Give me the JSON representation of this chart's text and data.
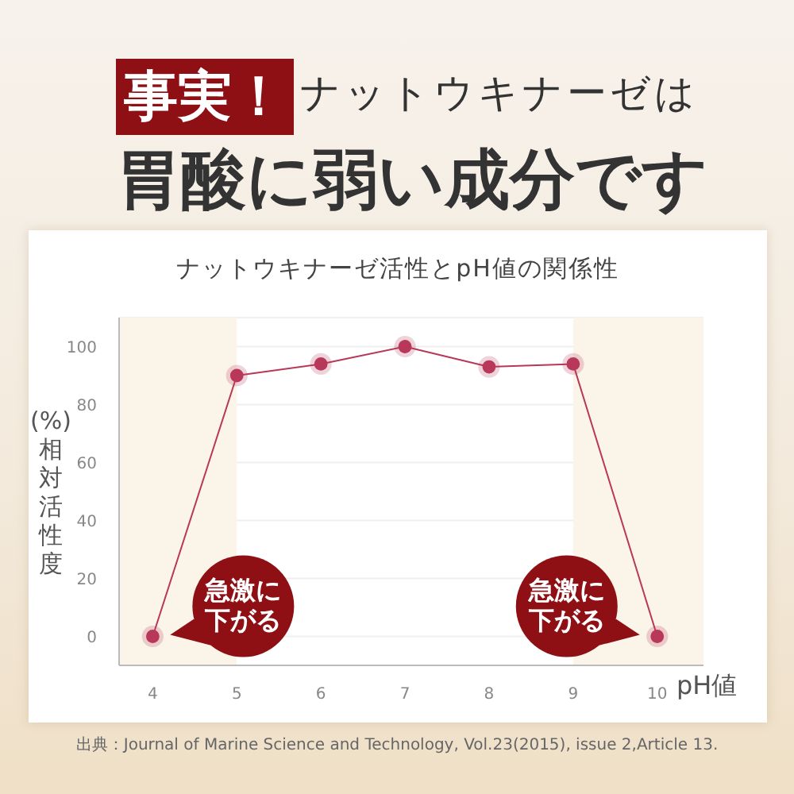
{
  "chart_data": {
    "type": "line",
    "title": "事実！ナットウキナーゼは胃酸に弱い成分です",
    "subtitle": "ナットウキナーゼ活性とpH値の関係性",
    "xlabel": "pH値",
    "ylabel": "(%)相対活性度",
    "x": [
      4,
      5,
      6,
      7,
      8,
      9,
      10
    ],
    "values": [
      0,
      90,
      94,
      100,
      93,
      94,
      0
    ],
    "color": "#b8385a",
    "xlim": [
      3.6,
      10.55
    ],
    "xticks": [
      4,
      5,
      6,
      7,
      8,
      9,
      10
    ],
    "ylim": [
      -10,
      110
    ],
    "yticks": [
      0,
      20,
      40,
      60,
      80,
      100
    ],
    "grid": "y",
    "marker": "circle",
    "line_style": "solid",
    "bands": [
      {
        "axis": "x",
        "from": 3.6,
        "to": 5,
        "color": "#fbf4e8"
      },
      {
        "axis": "x",
        "from": 9,
        "to": 10.55,
        "color": "#fbf4e8"
      }
    ],
    "annotations": [
      {
        "text": "急激に下がる",
        "x": 4,
        "y": 0
      },
      {
        "text": "急激に下がる",
        "x": 10,
        "y": 0
      },
      "出典：Journal of Marine Science and Technology, Vol.23(2015), issue 2,Article 13."
    ]
  }
}
